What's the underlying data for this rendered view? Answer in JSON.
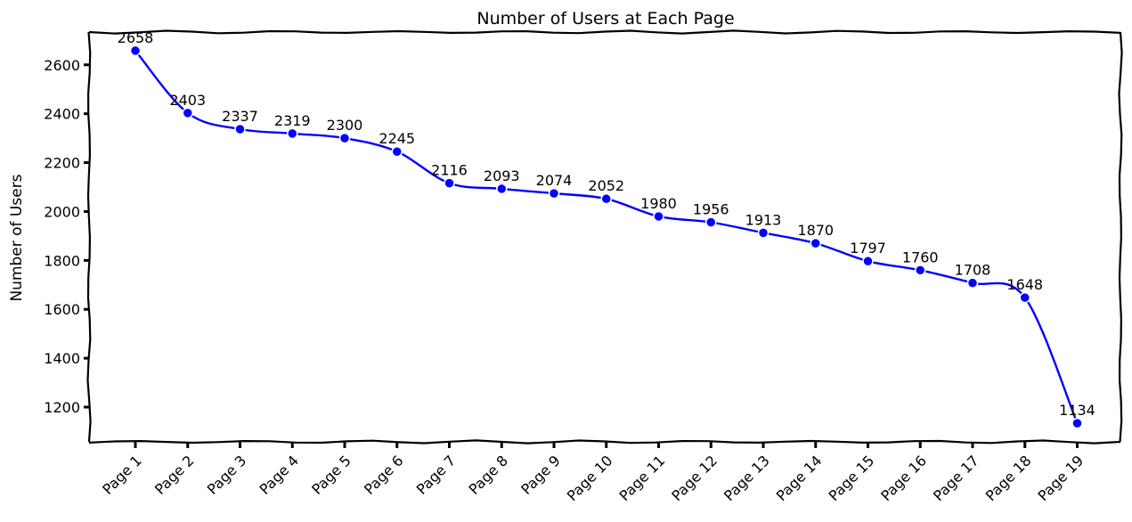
{
  "chart_data": {
    "type": "line",
    "title": "Number of Users at Each Page",
    "xlabel": "",
    "ylabel": "Number of Users",
    "categories": [
      "Page 1",
      "Page 2",
      "Page 3",
      "Page 4",
      "Page 5",
      "Page 6",
      "Page 7",
      "Page 8",
      "Page 9",
      "Page 10",
      "Page 11",
      "Page 12",
      "Page 13",
      "Page 14",
      "Page 15",
      "Page 16",
      "Page 17",
      "Page 18",
      "Page 19"
    ],
    "series": [
      {
        "values": [
          2658,
          2403,
          2337,
          2319,
          2300,
          2245,
          2116,
          2093,
          2074,
          2052,
          1980,
          1956,
          1913,
          1870,
          1797,
          1760,
          1708,
          1648,
          1134
        ],
        "color": "#0000ff"
      }
    ],
    "yticks": [
      1200,
      1400,
      1600,
      1800,
      2000,
      2200,
      2400,
      2600
    ],
    "ylim": [
      1058,
      2734
    ],
    "grid": false,
    "legend": "none",
    "style": "xkcd"
  }
}
